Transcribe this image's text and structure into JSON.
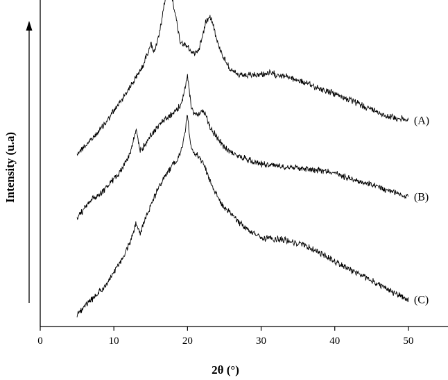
{
  "chart_data": {
    "type": "line",
    "title": "",
    "xlabel": "2θ (°)",
    "ylabel": "Intensity (u.a)",
    "xlim": [
      0,
      55
    ],
    "xticks": [
      0,
      10,
      20,
      30,
      40,
      50
    ],
    "xtick_labels": [
      "0",
      "10",
      "20",
      "30",
      "40",
      "50"
    ],
    "y_ticks_shown": false,
    "grid": false,
    "legend": "none (series labeled at right end of each curve)",
    "offsets_note": "curves vertically stacked, arbitrary units",
    "series": [
      {
        "name": "(A)",
        "x": [
          5,
          7,
          9,
          11,
          12,
          13,
          14,
          14.5,
          15,
          15.5,
          16,
          16.5,
          17,
          17.5,
          18,
          18.5,
          19,
          20,
          20.5,
          21,
          21.5,
          22,
          22.5,
          23,
          23.5,
          24,
          25,
          26,
          27,
          29,
          31,
          33,
          35,
          38,
          41,
          44,
          47,
          50
        ],
        "y": [
          0.0,
          0.12,
          0.27,
          0.45,
          0.55,
          0.64,
          0.75,
          0.84,
          0.93,
          0.86,
          0.96,
          1.12,
          1.32,
          1.38,
          1.3,
          1.12,
          0.95,
          0.9,
          0.86,
          0.85,
          0.88,
          0.98,
          1.12,
          1.17,
          1.1,
          0.95,
          0.8,
          0.7,
          0.66,
          0.66,
          0.68,
          0.66,
          0.62,
          0.55,
          0.48,
          0.4,
          0.32,
          0.28
        ]
      },
      {
        "name": "(B)",
        "x": [
          5,
          6,
          7,
          8,
          9,
          10,
          11,
          12,
          12.5,
          13,
          13.5,
          14,
          15,
          16,
          17,
          18,
          19,
          19.5,
          20,
          20.5,
          21,
          21.5,
          22,
          22.5,
          23,
          24,
          25,
          27,
          30,
          33,
          36,
          39,
          42,
          45,
          48,
          50
        ],
        "y": [
          0.0,
          0.08,
          0.16,
          0.2,
          0.26,
          0.33,
          0.41,
          0.52,
          0.61,
          0.75,
          0.58,
          0.6,
          0.7,
          0.78,
          0.84,
          0.88,
          0.95,
          1.05,
          1.2,
          0.94,
          0.88,
          0.89,
          0.9,
          0.87,
          0.78,
          0.68,
          0.6,
          0.52,
          0.46,
          0.44,
          0.42,
          0.4,
          0.34,
          0.28,
          0.22,
          0.18
        ]
      },
      {
        "name": "(C)",
        "x": [
          5,
          7,
          9,
          11,
          12,
          12.5,
          13,
          13.5,
          14,
          15,
          16,
          17,
          18,
          19,
          19.5,
          20,
          20.5,
          21,
          22,
          23,
          24,
          25,
          26,
          27,
          28,
          30,
          33,
          36,
          39,
          42,
          45,
          48,
          50
        ],
        "y": [
          0.0,
          0.12,
          0.25,
          0.45,
          0.58,
          0.66,
          0.77,
          0.68,
          0.76,
          0.92,
          1.06,
          1.18,
          1.26,
          1.35,
          1.48,
          1.68,
          1.4,
          1.36,
          1.3,
          1.14,
          1.0,
          0.9,
          0.84,
          0.78,
          0.72,
          0.64,
          0.63,
          0.58,
          0.48,
          0.38,
          0.28,
          0.18,
          0.12
        ]
      }
    ]
  }
}
